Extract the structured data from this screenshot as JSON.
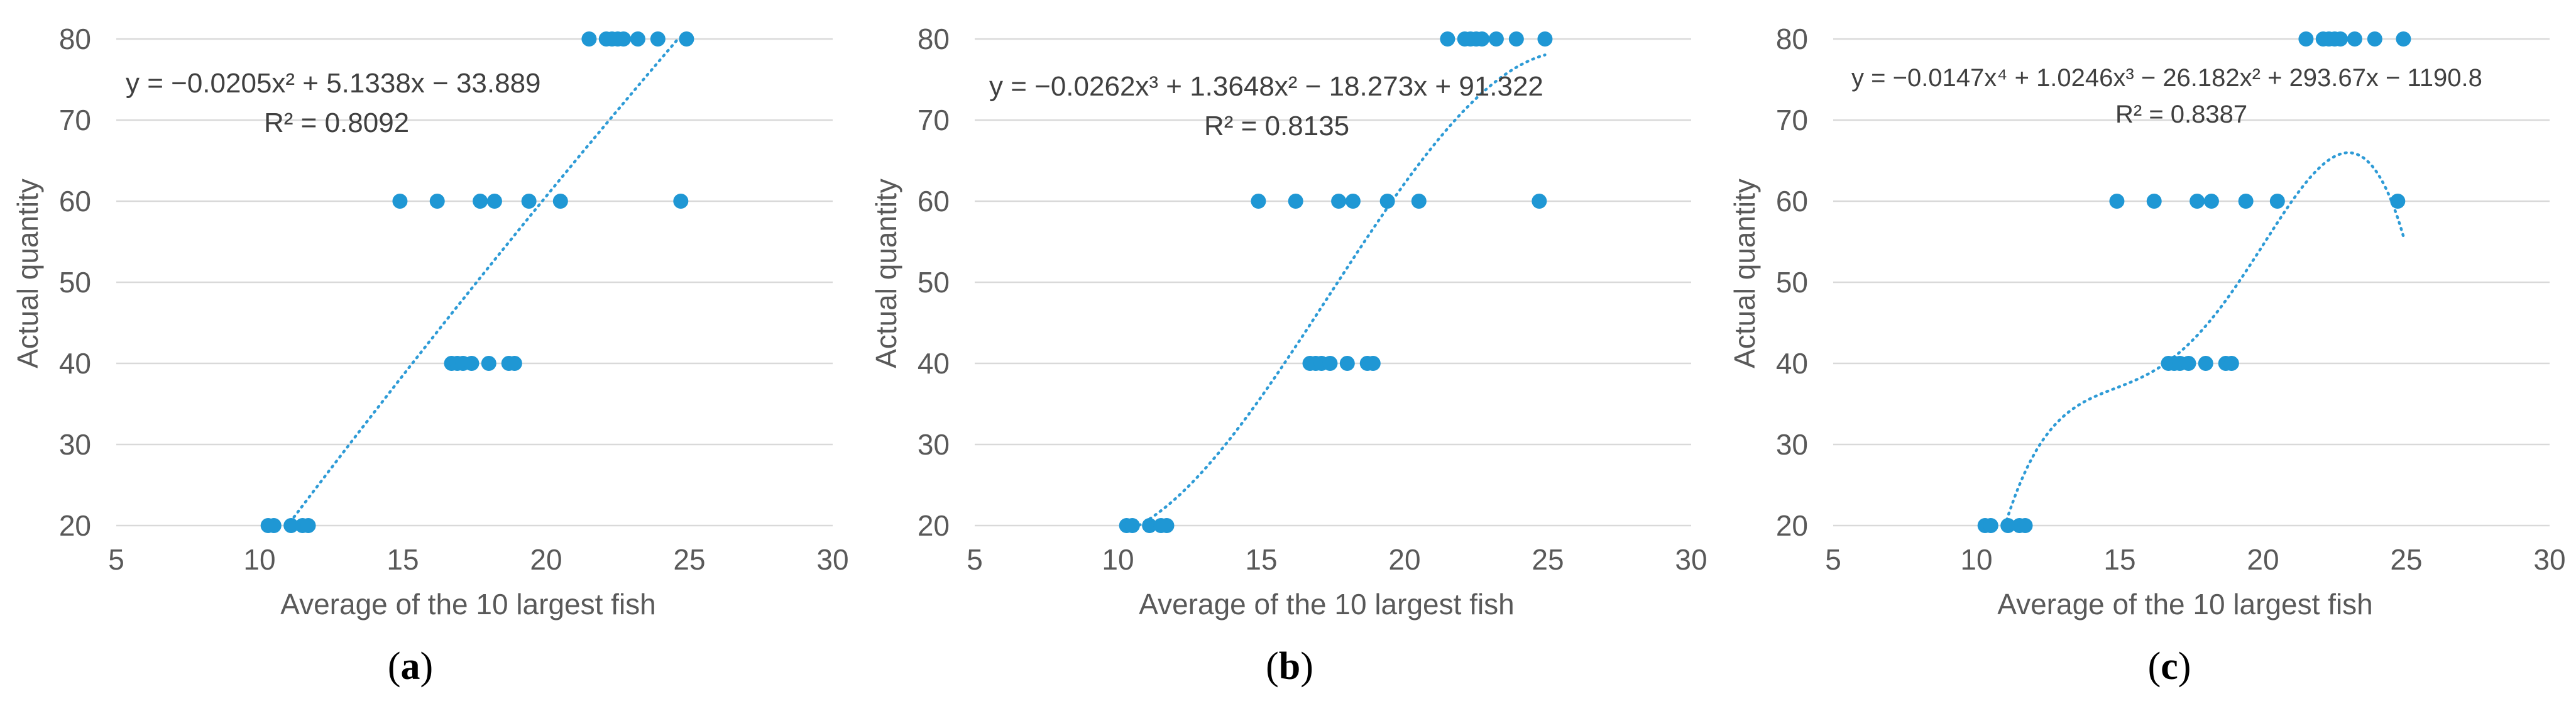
{
  "chart_data": [
    {
      "type": "scatter",
      "subfigure_label": "a",
      "xlabel": "Average of the 10 largest fish",
      "ylabel": "Actual quantity",
      "xlim": [
        5,
        30
      ],
      "ylim": [
        20,
        80
      ],
      "x_ticks": [
        "5",
        "10",
        "15",
        "20",
        "25",
        "30"
      ],
      "y_ticks": [
        "20",
        "30",
        "40",
        "50",
        "60",
        "70",
        "80"
      ],
      "grid": "horizontal",
      "equation": "y = −0.0205x² + 5.1338x − 33.889",
      "r_squared": "R² = 0.8092",
      "trendline": {
        "kind": "polynomial",
        "coefficients": [
          -33.889,
          5.1338,
          -0.0205
        ],
        "x_range": [
          10.9,
          24.9
        ]
      },
      "points": [
        {
          "x": 10.3,
          "y": 20
        },
        {
          "x": 10.5,
          "y": 20
        },
        {
          "x": 11.1,
          "y": 20
        },
        {
          "x": 11.5,
          "y": 20
        },
        {
          "x": 11.7,
          "y": 20
        },
        {
          "x": 16.7,
          "y": 40
        },
        {
          "x": 16.9,
          "y": 40
        },
        {
          "x": 17.1,
          "y": 40
        },
        {
          "x": 17.4,
          "y": 40
        },
        {
          "x": 18.0,
          "y": 40
        },
        {
          "x": 18.7,
          "y": 40
        },
        {
          "x": 18.9,
          "y": 40
        },
        {
          "x": 14.9,
          "y": 60
        },
        {
          "x": 16.2,
          "y": 60
        },
        {
          "x": 17.7,
          "y": 60
        },
        {
          "x": 18.2,
          "y": 60
        },
        {
          "x": 19.4,
          "y": 60
        },
        {
          "x": 20.5,
          "y": 60
        },
        {
          "x": 24.7,
          "y": 60
        },
        {
          "x": 21.5,
          "y": 80
        },
        {
          "x": 22.1,
          "y": 80
        },
        {
          "x": 22.3,
          "y": 80
        },
        {
          "x": 22.5,
          "y": 80
        },
        {
          "x": 22.7,
          "y": 80
        },
        {
          "x": 23.2,
          "y": 80
        },
        {
          "x": 23.9,
          "y": 80
        },
        {
          "x": 24.9,
          "y": 80
        }
      ]
    },
    {
      "type": "scatter",
      "subfigure_label": "b",
      "xlabel": "Average of the 10 largest fish",
      "ylabel": "Actual quantity",
      "xlim": [
        5,
        30
      ],
      "ylim": [
        20,
        80
      ],
      "x_ticks": [
        "5",
        "10",
        "15",
        "20",
        "25",
        "30"
      ],
      "y_ticks": [
        "20",
        "30",
        "40",
        "50",
        "60",
        "70",
        "80"
      ],
      "grid": "horizontal",
      "equation": "y = −0.0262x³ + 1.3648x² − 18.273x + 91.322",
      "r_squared": "R² = 0.8135",
      "trendline": {
        "kind": "polynomial",
        "coefficients": [
          91.322,
          -18.273,
          1.3648,
          -0.0262
        ],
        "x_range": [
          10.3,
          24.9
        ]
      },
      "points": [
        {
          "x": 10.3,
          "y": 20
        },
        {
          "x": 10.5,
          "y": 20
        },
        {
          "x": 11.1,
          "y": 20
        },
        {
          "x": 11.5,
          "y": 20
        },
        {
          "x": 11.7,
          "y": 20
        },
        {
          "x": 16.7,
          "y": 40
        },
        {
          "x": 16.9,
          "y": 40
        },
        {
          "x": 17.1,
          "y": 40
        },
        {
          "x": 17.4,
          "y": 40
        },
        {
          "x": 18.0,
          "y": 40
        },
        {
          "x": 18.7,
          "y": 40
        },
        {
          "x": 18.9,
          "y": 40
        },
        {
          "x": 14.9,
          "y": 60
        },
        {
          "x": 16.2,
          "y": 60
        },
        {
          "x": 17.7,
          "y": 60
        },
        {
          "x": 18.2,
          "y": 60
        },
        {
          "x": 19.4,
          "y": 60
        },
        {
          "x": 20.5,
          "y": 60
        },
        {
          "x": 24.7,
          "y": 60
        },
        {
          "x": 21.5,
          "y": 80
        },
        {
          "x": 22.1,
          "y": 80
        },
        {
          "x": 22.3,
          "y": 80
        },
        {
          "x": 22.5,
          "y": 80
        },
        {
          "x": 22.7,
          "y": 80
        },
        {
          "x": 23.2,
          "y": 80
        },
        {
          "x": 23.9,
          "y": 80
        },
        {
          "x": 24.9,
          "y": 80
        }
      ]
    },
    {
      "type": "scatter",
      "subfigure_label": "c",
      "xlabel": "Average of the 10 largest fish",
      "ylabel": "Actual quantity",
      "xlim": [
        5,
        30
      ],
      "ylim": [
        20,
        80
      ],
      "x_ticks": [
        "5",
        "10",
        "15",
        "20",
        "25",
        "30"
      ],
      "y_ticks": [
        "20",
        "30",
        "40",
        "50",
        "60",
        "70",
        "80"
      ],
      "grid": "horizontal",
      "equation": "y = −0.0147x⁴ + 1.0246x³ − 26.182x² + 293.67x − 1190.8",
      "r_squared": "R² = 0.8387",
      "trendline": {
        "kind": "polynomial",
        "coefficients": [
          -1190.8,
          293.67,
          -26.182,
          1.0246,
          -0.0147
        ],
        "x_range": [
          10.95,
          24.9
        ]
      },
      "points": [
        {
          "x": 10.3,
          "y": 20
        },
        {
          "x": 10.5,
          "y": 20
        },
        {
          "x": 11.1,
          "y": 20
        },
        {
          "x": 11.5,
          "y": 20
        },
        {
          "x": 11.7,
          "y": 20
        },
        {
          "x": 16.7,
          "y": 40
        },
        {
          "x": 16.9,
          "y": 40
        },
        {
          "x": 17.1,
          "y": 40
        },
        {
          "x": 17.4,
          "y": 40
        },
        {
          "x": 18.0,
          "y": 40
        },
        {
          "x": 18.7,
          "y": 40
        },
        {
          "x": 18.9,
          "y": 40
        },
        {
          "x": 14.9,
          "y": 60
        },
        {
          "x": 16.2,
          "y": 60
        },
        {
          "x": 17.7,
          "y": 60
        },
        {
          "x": 18.2,
          "y": 60
        },
        {
          "x": 19.4,
          "y": 60
        },
        {
          "x": 20.5,
          "y": 60
        },
        {
          "x": 24.7,
          "y": 60
        },
        {
          "x": 21.5,
          "y": 80
        },
        {
          "x": 22.1,
          "y": 80
        },
        {
          "x": 22.3,
          "y": 80
        },
        {
          "x": 22.5,
          "y": 80
        },
        {
          "x": 22.7,
          "y": 80
        },
        {
          "x": 23.2,
          "y": 80
        },
        {
          "x": 23.9,
          "y": 80
        },
        {
          "x": 24.9,
          "y": 80
        }
      ]
    }
  ]
}
